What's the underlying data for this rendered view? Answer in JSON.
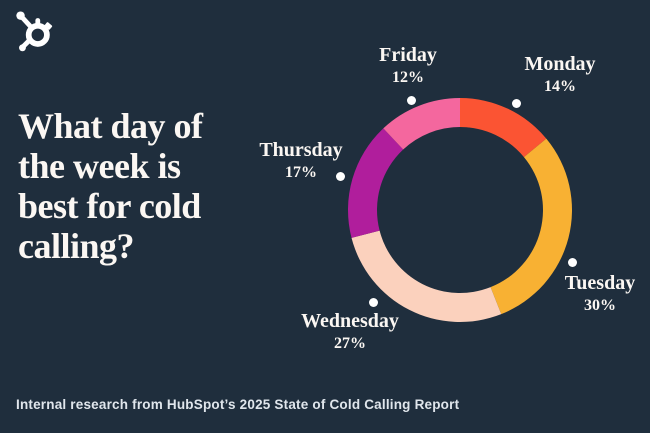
{
  "brand": {
    "logo": "hubspot-sprocket-logo",
    "logo_color": "#ffffff"
  },
  "title": {
    "full": "What day of the week is best for cold calling?",
    "lines": [
      "What day of",
      "the week is",
      "best for cold",
      "calling?"
    ]
  },
  "footer": {
    "text": "Internal research from HubSpot’s 2025 State of Cold Calling Report"
  },
  "colors": {
    "background": "#1f2e3d",
    "heading_text": "#fbf7f3",
    "footer_text": "#e0e6ec",
    "marker_dot": "#ffffff"
  },
  "chart_data": {
    "type": "pie",
    "subtype": "donut",
    "title": "What day of the week is best for cold calling?",
    "unit": "%",
    "categories": [
      "Monday",
      "Tuesday",
      "Wednesday",
      "Thursday",
      "Friday"
    ],
    "values": [
      14,
      30,
      27,
      17,
      12
    ],
    "start_angle_deg": 0,
    "direction": "clockwise",
    "legend": "none",
    "slices": [
      {
        "day": "Monday",
        "value": 14,
        "pct_label": "14%",
        "color": "#fb5433"
      },
      {
        "day": "Tuesday",
        "value": 30,
        "pct_label": "30%",
        "color": "#f8b133"
      },
      {
        "day": "Wednesday",
        "value": 27,
        "pct_label": "27%",
        "color": "#fbd1bd"
      },
      {
        "day": "Thursday",
        "value": 17,
        "pct_label": "17%",
        "color": "#b01e9c"
      },
      {
        "day": "Friday",
        "value": 12,
        "pct_label": "12%",
        "color": "#f4679e"
      }
    ]
  }
}
